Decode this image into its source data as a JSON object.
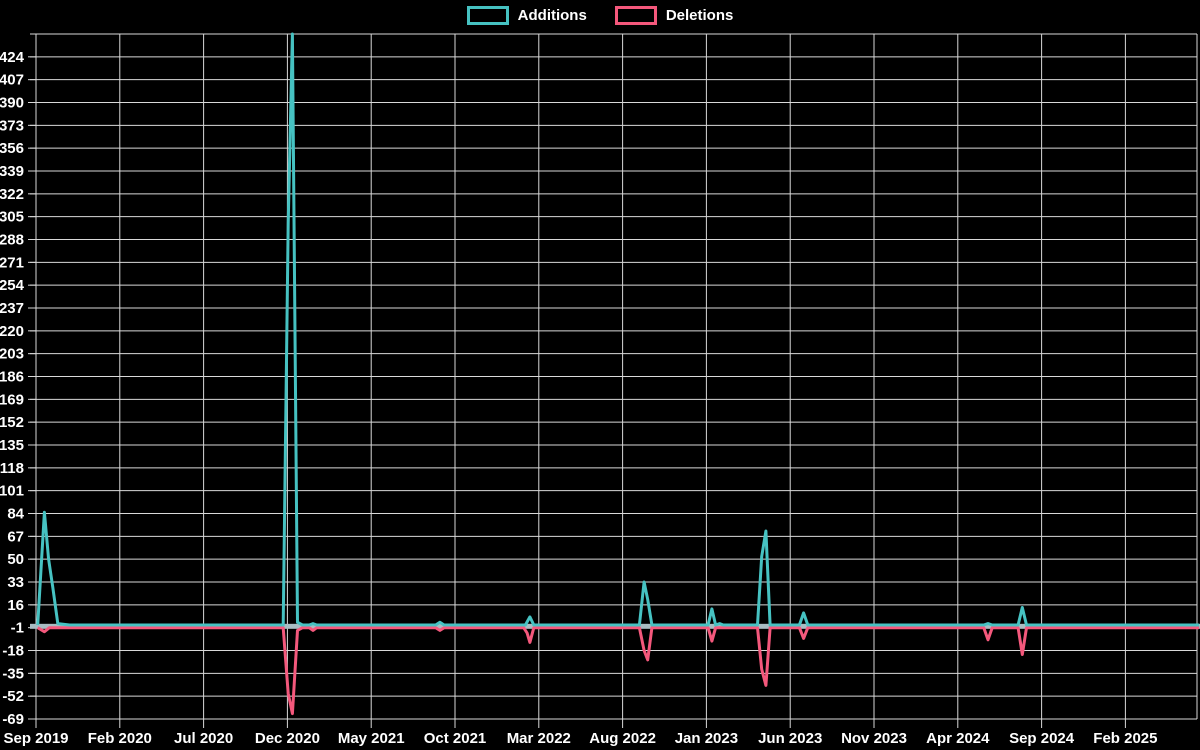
{
  "legend": {
    "items": [
      {
        "label": "Additions",
        "color": "#46c2c2"
      },
      {
        "label": "Deletions",
        "color": "#f4587c"
      }
    ]
  },
  "chart_data": {
    "type": "line",
    "title": "",
    "xlabel": "",
    "ylabel": "",
    "background_color": "#000000",
    "grid": true,
    "grid_color": "#d9d9d9",
    "text_color": "#ffffff",
    "zero_line_color": "#a9bcc2",
    "legend_position": "top-center",
    "y_axis": {
      "min": -69,
      "max": 441,
      "tick_step": 17
    },
    "y_tick_labels": [
      424,
      407,
      390,
      373,
      356,
      339,
      322,
      305,
      288,
      271,
      254,
      237,
      220,
      203,
      186,
      169,
      152,
      135,
      118,
      101,
      84,
      67,
      50,
      33,
      16,
      -1,
      -18,
      -35,
      -52,
      -69
    ],
    "x_tick_labels": [
      "Sep 2019",
      "Feb 2020",
      "Jul 2020",
      "Dec 2020",
      "May 2021",
      "Oct 2021",
      "Mar 2022",
      "Aug 2022",
      "Jan 2023",
      "Jun 2023",
      "Nov 2023",
      "Apr 2024",
      "Sep 2024",
      "Feb 2025"
    ],
    "x_unit": "months since Sep 2019 (weekly data points)",
    "x_tick_interval_months": 5,
    "x_span_months": 69.4,
    "series": [
      {
        "name": "Additions",
        "color": "#46c2c2",
        "points": [
          [
            0.1,
            1
          ],
          [
            0.5,
            85
          ],
          [
            0.75,
            50
          ],
          [
            1.0,
            29
          ],
          [
            1.3,
            2
          ],
          [
            2.0,
            1
          ],
          [
            14.75,
            1
          ],
          [
            15.05,
            300
          ],
          [
            15.3,
            441
          ],
          [
            15.6,
            3
          ],
          [
            15.9,
            1
          ],
          [
            16.3,
            1
          ],
          [
            16.53,
            2
          ],
          [
            16.75,
            1
          ],
          [
            23.85,
            1
          ],
          [
            24.1,
            3
          ],
          [
            24.35,
            1
          ],
          [
            29.2,
            1
          ],
          [
            29.47,
            7
          ],
          [
            29.7,
            1
          ],
          [
            36.0,
            1
          ],
          [
            36.28,
            33
          ],
          [
            36.5,
            20
          ],
          [
            36.75,
            1
          ],
          [
            40.1,
            1
          ],
          [
            40.33,
            13
          ],
          [
            40.55,
            1
          ],
          [
            40.8,
            2
          ],
          [
            41.0,
            1
          ],
          [
            43.05,
            1
          ],
          [
            43.3,
            52
          ],
          [
            43.55,
            71
          ],
          [
            43.8,
            1
          ],
          [
            45.55,
            1
          ],
          [
            45.8,
            10
          ],
          [
            46.05,
            1
          ],
          [
            56.55,
            1
          ],
          [
            56.8,
            2
          ],
          [
            57.05,
            1
          ],
          [
            58.6,
            1
          ],
          [
            58.85,
            14
          ],
          [
            59.1,
            1
          ],
          [
            69.4,
            1
          ]
        ]
      },
      {
        "name": "Deletions",
        "color": "#f4587c",
        "points": [
          [
            0.1,
            -1
          ],
          [
            0.5,
            -4
          ],
          [
            0.8,
            -1
          ],
          [
            14.75,
            -1
          ],
          [
            15.05,
            -50
          ],
          [
            15.3,
            -65
          ],
          [
            15.6,
            -3
          ],
          [
            15.9,
            -1
          ],
          [
            16.3,
            -1
          ],
          [
            16.53,
            -3
          ],
          [
            16.75,
            -1
          ],
          [
            23.85,
            -1
          ],
          [
            24.1,
            -3
          ],
          [
            24.35,
            -1
          ],
          [
            29.1,
            -1
          ],
          [
            29.3,
            -5
          ],
          [
            29.47,
            -12
          ],
          [
            29.7,
            -1
          ],
          [
            36.0,
            -1
          ],
          [
            36.28,
            -18
          ],
          [
            36.5,
            -25
          ],
          [
            36.75,
            -1
          ],
          [
            40.1,
            -1
          ],
          [
            40.33,
            -11
          ],
          [
            40.55,
            -1
          ],
          [
            43.05,
            -1
          ],
          [
            43.3,
            -32
          ],
          [
            43.55,
            -44
          ],
          [
            43.8,
            -1
          ],
          [
            45.55,
            -1
          ],
          [
            45.8,
            -9
          ],
          [
            46.05,
            -1
          ],
          [
            56.55,
            -1
          ],
          [
            56.8,
            -10
          ],
          [
            57.05,
            -1
          ],
          [
            58.6,
            -1
          ],
          [
            58.85,
            -21
          ],
          [
            59.1,
            -1
          ],
          [
            69.4,
            -1
          ]
        ]
      }
    ]
  }
}
